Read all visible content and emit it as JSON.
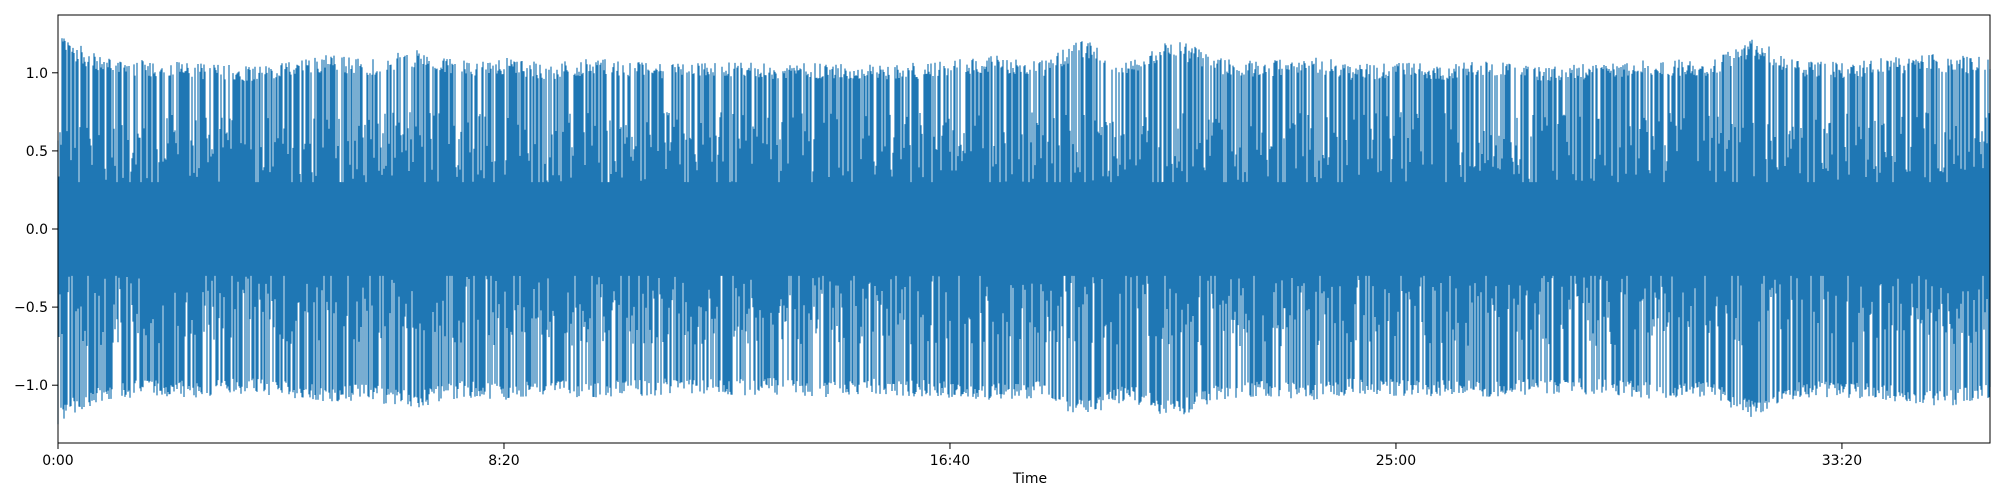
{
  "chart_data": {
    "type": "line",
    "title": "",
    "xlabel": "Time",
    "ylabel": "",
    "xlim": [
      0,
      2166
    ],
    "ylim": [
      -1.37,
      1.37
    ],
    "grid": false,
    "x_ticks": [
      {
        "value": 0,
        "label": "0:00"
      },
      {
        "value": 500,
        "label": "8:20"
      },
      {
        "value": 1000,
        "label": "16:40"
      },
      {
        "value": 1500,
        "label": "25:00"
      },
      {
        "value": 2000,
        "label": "33:20"
      }
    ],
    "y_ticks": [
      {
        "value": 1.0,
        "label": "1.0"
      },
      {
        "value": 0.5,
        "label": "0.5"
      },
      {
        "value": 0.0,
        "label": "0.0"
      },
      {
        "value": -0.5,
        "label": "−0.5"
      },
      {
        "value": -1.0,
        "label": "−1.0"
      }
    ],
    "series": [
      {
        "color": "#1f77b4",
        "description": "audio waveform amplitude, dense signal filling roughly −1.05 to 1.05 with peaks up to about ±1.25",
        "x": [
          0,
          50,
          100,
          150,
          200,
          250,
          300,
          350,
          400,
          450,
          500,
          550,
          600,
          650,
          700,
          750,
          800,
          850,
          900,
          950,
          1000,
          1050,
          1100,
          1150,
          1200,
          1250,
          1300,
          1350,
          1400,
          1450,
          1500,
          1550,
          1600,
          1650,
          1700,
          1750,
          1800,
          1850,
          1900,
          1950,
          2000,
          2050,
          2100,
          2166
        ],
        "max": [
          1.25,
          1.1,
          1.08,
          1.07,
          1.05,
          1.06,
          1.12,
          1.09,
          1.15,
          1.08,
          1.1,
          1.06,
          1.1,
          1.07,
          1.06,
          1.07,
          1.06,
          1.07,
          1.05,
          1.06,
          1.08,
          1.12,
          1.07,
          1.22,
          1.08,
          1.23,
          1.1,
          1.07,
          1.12,
          1.06,
          1.07,
          1.06,
          1.08,
          1.05,
          1.06,
          1.07,
          1.09,
          1.08,
          1.22,
          1.08,
          1.07,
          1.1,
          1.12,
          1.1
        ],
        "min": [
          -1.25,
          -1.1,
          -1.07,
          -1.08,
          -1.06,
          -1.07,
          -1.12,
          -1.1,
          -1.16,
          -1.08,
          -1.1,
          -1.07,
          -1.08,
          -1.07,
          -1.06,
          -1.07,
          -1.06,
          -1.08,
          -1.06,
          -1.07,
          -1.08,
          -1.1,
          -1.08,
          -1.22,
          -1.1,
          -1.23,
          -1.1,
          -1.07,
          -1.1,
          -1.06,
          -1.07,
          -1.07,
          -1.08,
          -1.06,
          -1.06,
          -1.07,
          -1.1,
          -1.08,
          -1.22,
          -1.08,
          -1.08,
          -1.1,
          -1.15,
          -1.1
        ]
      }
    ]
  }
}
